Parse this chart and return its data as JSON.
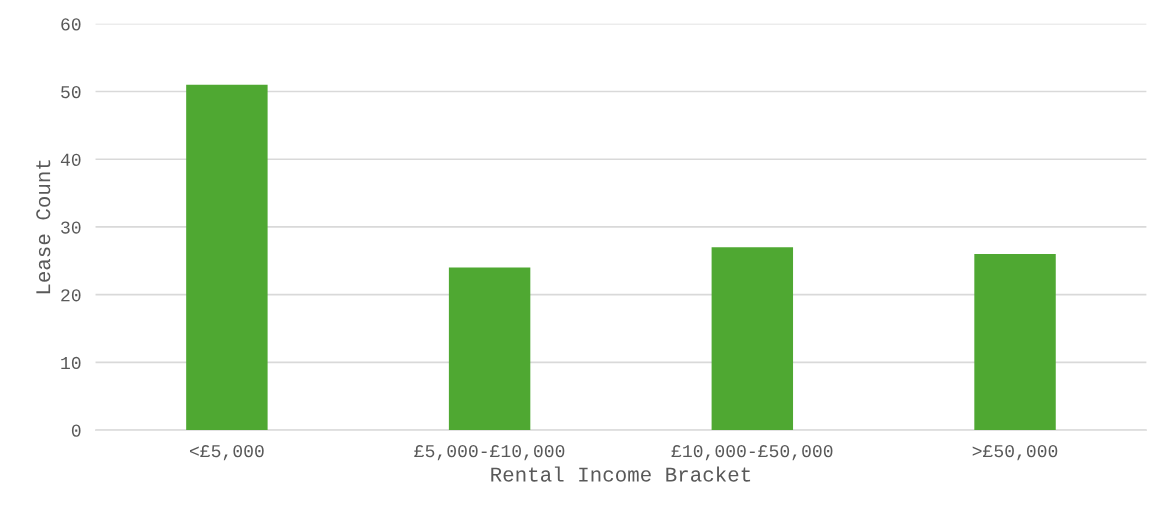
{
  "chart_data": {
    "type": "bar",
    "xlabel": "Rental Income Bracket",
    "ylabel": "Lease Count",
    "categories": [
      "<£5,000",
      "£5,000-£10,000",
      "£10,000-£50,000",
      ">£50,000"
    ],
    "values": [
      51,
      24,
      27,
      26
    ],
    "color": "#4fa832",
    "ylim": [
      0,
      60
    ],
    "yticks": [
      0,
      10,
      20,
      30,
      40,
      50,
      60
    ],
    "grid": "y",
    "legend": false
  }
}
